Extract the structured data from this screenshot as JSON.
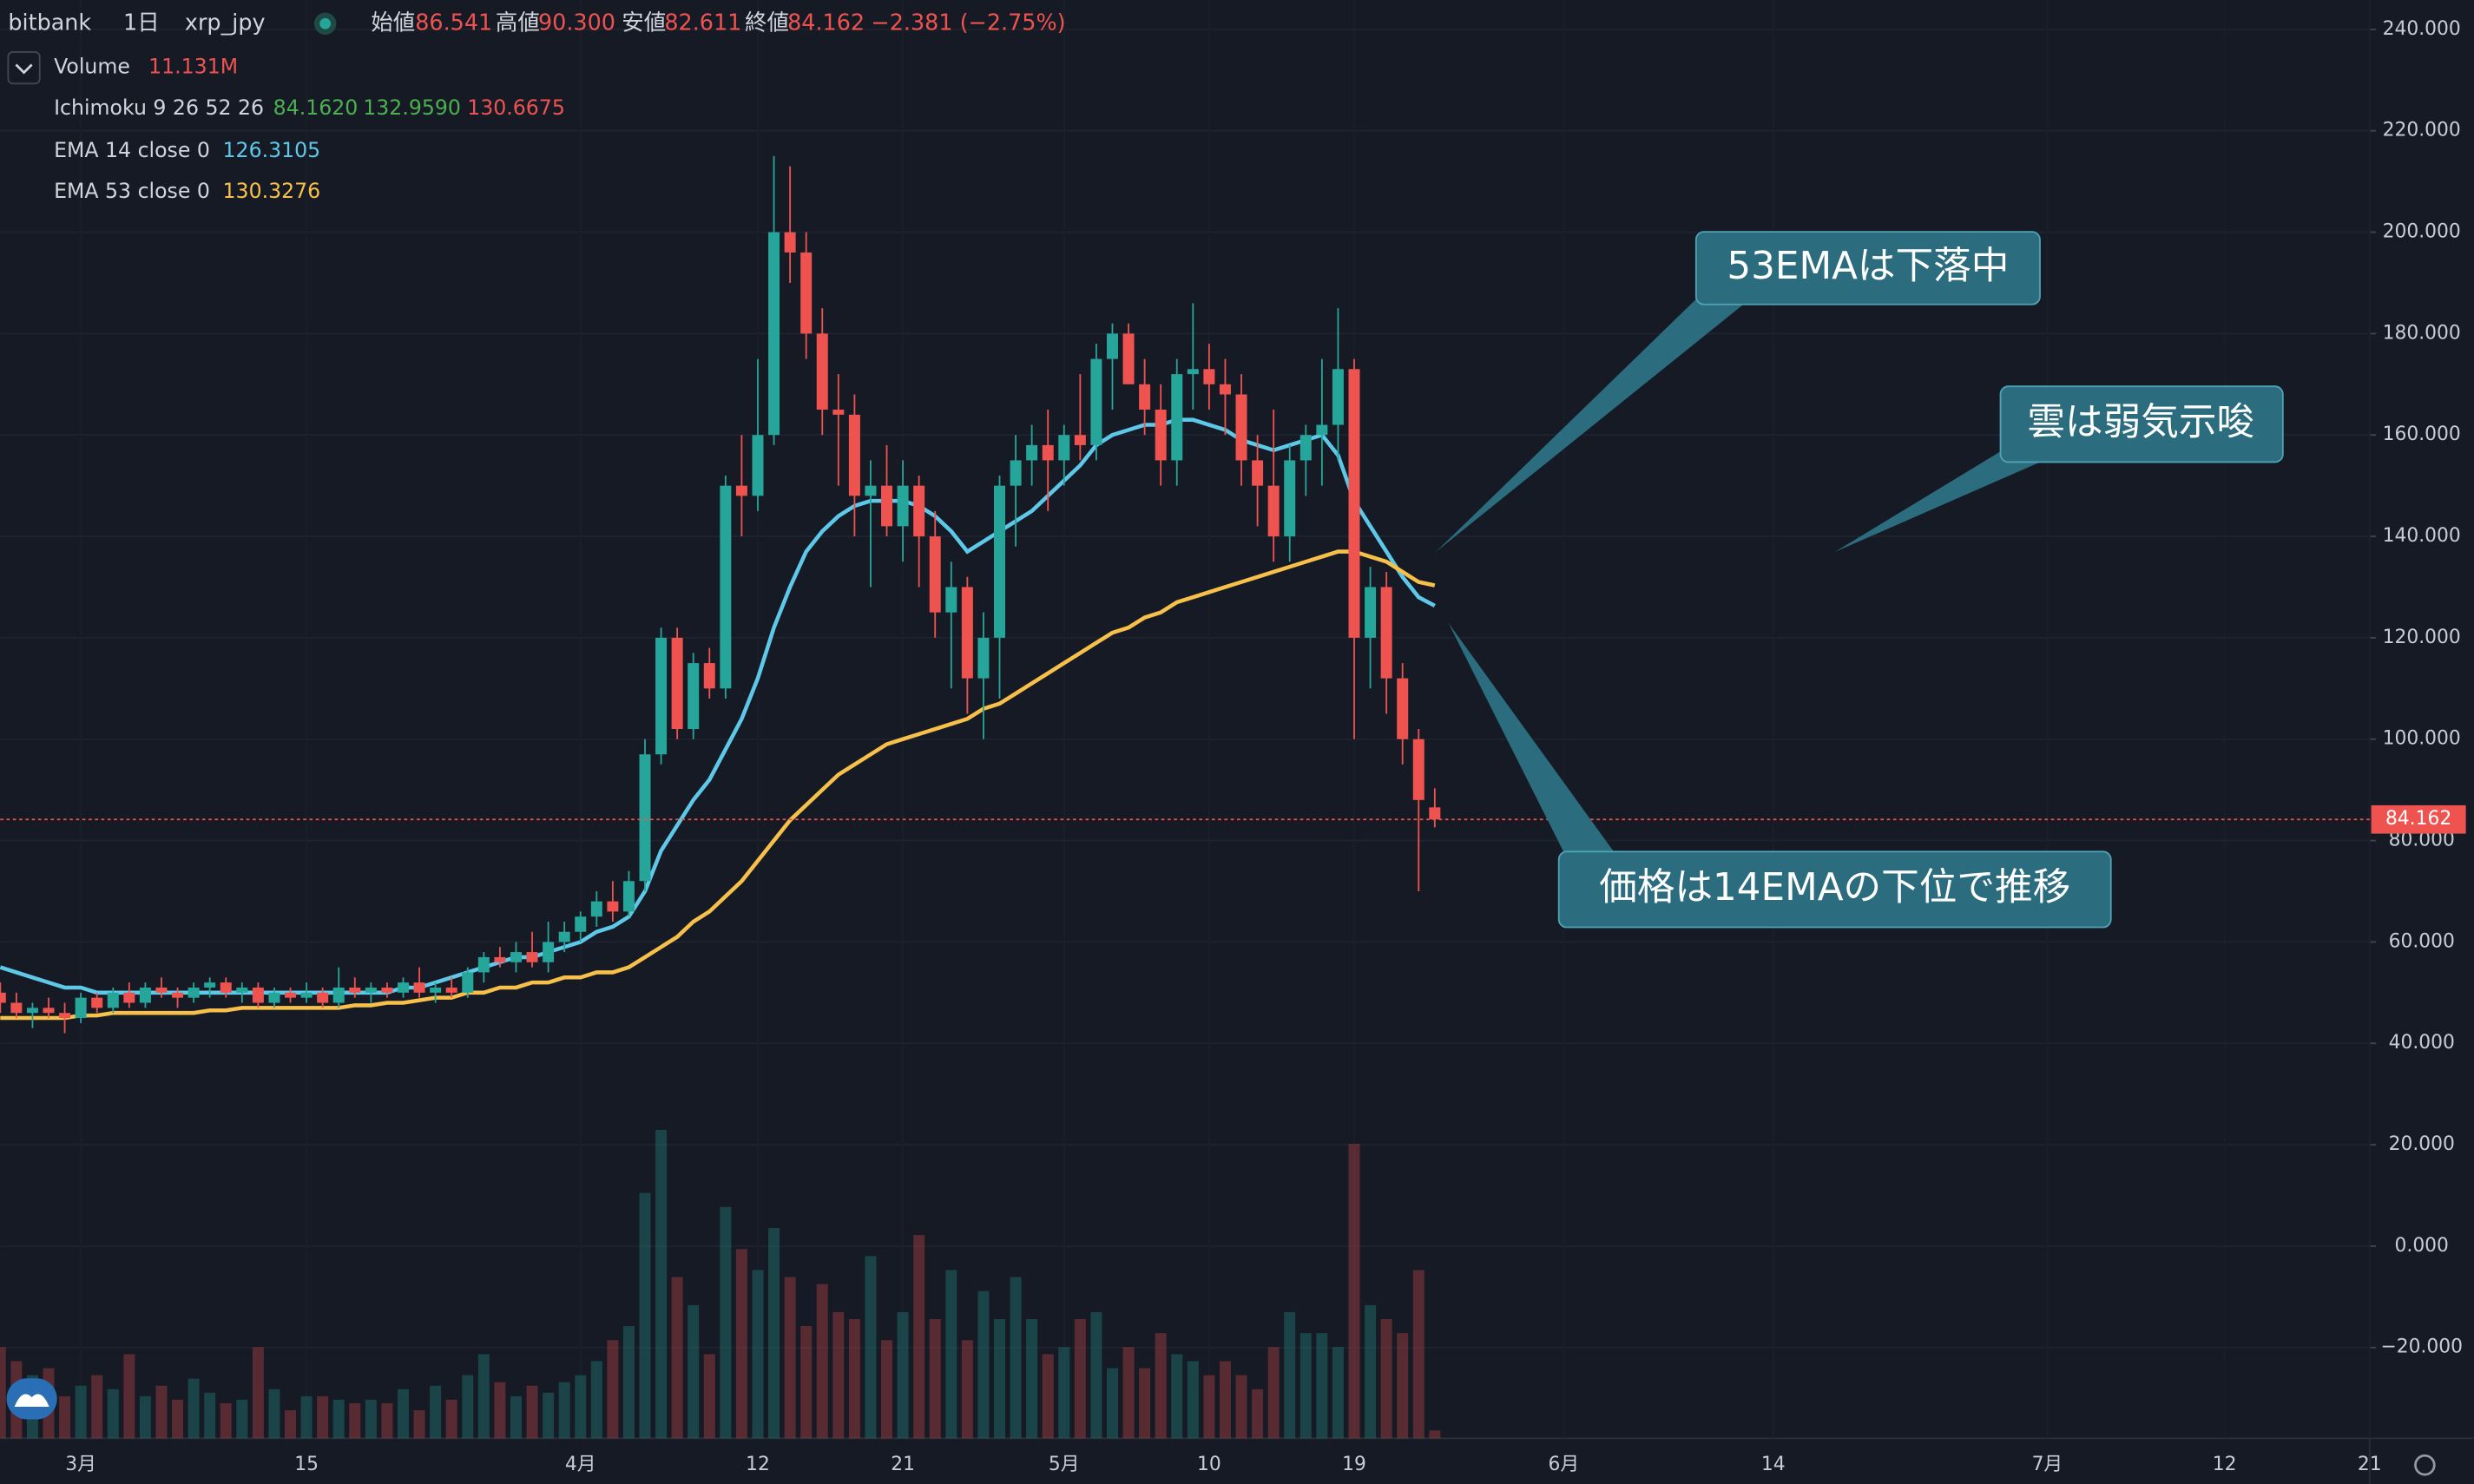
{
  "chart_data": {
    "type": "candlestick",
    "header": {
      "exchange": "bitbank",
      "interval": "1日",
      "symbol": "xrp_jpy",
      "items": [
        {
          "label": "始値",
          "value": "86.541"
        },
        {
          "label": "高値",
          "value": "90.300"
        },
        {
          "label": "安値",
          "value": "82.611"
        },
        {
          "label": "終値",
          "value": "84.162"
        }
      ],
      "change": "−2.381 (−2.75%)"
    },
    "volume_legend": {
      "name": "Volume",
      "value_label": "11.131M"
    },
    "ichimoku_legend": {
      "name": "Ichimoku 9 26 52 26",
      "values": [
        "84.1620",
        "132.9590",
        "130.6675"
      ],
      "colors": [
        "#4caf50",
        "#4caf50",
        "#ef5350"
      ]
    },
    "x": [
      "02-24",
      "02-25",
      "02-26",
      "02-27",
      "02-28",
      "03-01",
      "03-02",
      "03-03",
      "03-04",
      "03-05",
      "03-06",
      "03-07",
      "03-08",
      "03-09",
      "03-10",
      "03-11",
      "03-12",
      "03-13",
      "03-14",
      "03-15",
      "03-16",
      "03-17",
      "03-18",
      "03-19",
      "03-20",
      "03-21",
      "03-22",
      "03-23",
      "03-24",
      "03-25",
      "03-26",
      "03-27",
      "03-28",
      "03-29",
      "03-30",
      "03-31",
      "04-01",
      "04-02",
      "04-03",
      "04-04",
      "04-05",
      "04-06",
      "04-07",
      "04-08",
      "04-09",
      "04-10",
      "04-11",
      "04-12",
      "04-13",
      "04-14",
      "04-15",
      "04-16",
      "04-17",
      "04-18",
      "04-19",
      "04-20",
      "04-21",
      "04-22",
      "04-23",
      "04-24",
      "04-25",
      "04-26",
      "04-27",
      "04-28",
      "04-29",
      "04-30",
      "05-01",
      "05-02",
      "05-03",
      "05-04",
      "05-05",
      "05-06",
      "05-07",
      "05-08",
      "05-09",
      "05-10",
      "05-11",
      "05-12",
      "05-13",
      "05-14",
      "05-15",
      "05-16",
      "05-17",
      "05-18",
      "05-19",
      "05-20",
      "05-21",
      "05-22",
      "05-23",
      "05-24"
    ],
    "open": [
      50,
      48,
      46,
      47,
      46,
      45,
      49,
      47,
      50,
      48,
      51,
      50,
      49,
      51,
      52,
      50,
      51,
      48,
      50,
      49,
      50,
      48,
      51,
      50,
      51,
      50,
      52,
      50,
      51,
      50,
      54,
      57,
      56,
      58,
      56,
      60,
      62,
      65,
      68,
      66,
      72,
      97,
      120,
      102,
      115,
      110,
      150,
      148,
      160,
      200,
      196,
      180,
      165,
      164,
      148,
      150,
      142,
      150,
      140,
      125,
      130,
      112,
      120,
      150,
      155,
      158,
      155,
      160,
      158,
      175,
      180,
      170,
      165,
      155,
      172,
      173,
      170,
      168,
      155,
      150,
      140,
      155,
      160,
      162,
      173,
      120,
      130,
      112,
      100,
      86.541
    ],
    "high": [
      52,
      50,
      48,
      49,
      48,
      50,
      50,
      51,
      52,
      52,
      53,
      51,
      52,
      53,
      53,
      52,
      52,
      51,
      51,
      52,
      51,
      55,
      53,
      52,
      52,
      53,
      55,
      52,
      53,
      55,
      58,
      59,
      60,
      62,
      64,
      64,
      66,
      70,
      72,
      74,
      100,
      122,
      122,
      117,
      118,
      152,
      160,
      175,
      215,
      213,
      200,
      185,
      172,
      168,
      155,
      158,
      155,
      152,
      145,
      135,
      132,
      125,
      152,
      160,
      162,
      165,
      162,
      172,
      178,
      182,
      182,
      175,
      170,
      175,
      186,
      178,
      175,
      172,
      160,
      165,
      158,
      162,
      175,
      185,
      175,
      134,
      133,
      115,
      102,
      90.3
    ],
    "low": [
      46,
      45,
      43,
      45,
      42,
      44,
      46,
      46,
      47,
      47,
      49,
      47,
      48,
      49,
      49,
      48,
      47,
      47,
      48,
      48,
      47,
      47,
      49,
      48,
      49,
      49,
      49,
      48,
      49,
      49,
      52,
      55,
      54,
      55,
      54,
      58,
      60,
      63,
      64,
      65,
      70,
      95,
      100,
      100,
      108,
      108,
      140,
      145,
      158,
      190,
      175,
      160,
      150,
      140,
      130,
      140,
      135,
      130,
      120,
      110,
      105,
      100,
      108,
      138,
      150,
      145,
      150,
      155,
      155,
      165,
      170,
      160,
      150,
      150,
      165,
      165,
      160,
      150,
      142,
      135,
      135,
      148,
      150,
      155,
      100,
      110,
      105,
      95,
      70,
      82.611
    ],
    "close": [
      48,
      46,
      47,
      46,
      45,
      49,
      47,
      50,
      48,
      51,
      50,
      49,
      51,
      52,
      50,
      51,
      48,
      50,
      49,
      50,
      48,
      51,
      50,
      51,
      50,
      52,
      50,
      51,
      50,
      54,
      57,
      56,
      58,
      56,
      60,
      62,
      65,
      68,
      66,
      72,
      97,
      120,
      102,
      115,
      110,
      150,
      148,
      160,
      200,
      196,
      180,
      165,
      164,
      148,
      150,
      142,
      150,
      140,
      125,
      130,
      112,
      120,
      150,
      155,
      158,
      155,
      160,
      158,
      175,
      180,
      170,
      165,
      155,
      172,
      173,
      170,
      168,
      155,
      150,
      140,
      155,
      160,
      162,
      173,
      120,
      130,
      112,
      100,
      88,
      84.162
    ],
    "volume": [
      130,
      110,
      90,
      100,
      60,
      75,
      90,
      70,
      120,
      60,
      75,
      55,
      85,
      65,
      50,
      55,
      130,
      70,
      40,
      60,
      60,
      55,
      50,
      55,
      50,
      70,
      40,
      75,
      55,
      90,
      120,
      80,
      60,
      75,
      65,
      80,
      90,
      110,
      140,
      160,
      350,
      440,
      230,
      190,
      120,
      330,
      270,
      240,
      300,
      230,
      160,
      220,
      180,
      170,
      260,
      140,
      180,
      290,
      170,
      240,
      140,
      210,
      170,
      230,
      170,
      120,
      130,
      170,
      180,
      100,
      130,
      100,
      150,
      120,
      110,
      90,
      110,
      90,
      70,
      130,
      180,
      150,
      150,
      130,
      420,
      190,
      170,
      150,
      240,
      11.131
    ],
    "vlim": [
      0,
      450
    ],
    "up_color": "#26a69a",
    "down_color": "#ef5350",
    "series": [
      {
        "name": "EMA 14 close 0",
        "color": "#5ec8e8",
        "values": [
          55,
          54,
          53,
          52,
          51,
          51,
          50,
          50,
          50,
          50,
          50,
          50,
          50,
          50,
          50,
          50,
          50,
          50,
          50,
          50,
          50,
          50,
          50,
          50,
          50,
          51,
          51,
          52,
          53,
          54,
          55,
          56,
          57,
          57,
          58,
          59,
          60,
          62,
          63,
          65,
          70,
          78,
          83,
          88,
          92,
          98,
          104,
          112,
          122,
          130,
          137,
          141,
          144,
          146,
          147,
          147,
          147,
          146,
          144,
          141,
          137,
          139,
          141,
          143,
          145,
          148,
          151,
          154,
          158,
          160,
          161,
          162,
          162,
          163,
          163,
          162,
          161,
          159,
          158,
          157,
          158,
          159,
          160,
          156,
          147,
          142,
          137,
          132,
          128,
          126.3105
        ]
      },
      {
        "name": "EMA 53 close 0",
        "color": "#f7c04a",
        "values": [
          45,
          45,
          45,
          45,
          45,
          45.5,
          45.5,
          46,
          46,
          46,
          46,
          46,
          46,
          46.5,
          46.5,
          47,
          47,
          47,
          47,
          47,
          47,
          47,
          47.5,
          47.5,
          48,
          48,
          48.5,
          49,
          49,
          50,
          50,
          51,
          51,
          52,
          52,
          53,
          53,
          54,
          54,
          55,
          57,
          59,
          61,
          64,
          66,
          69,
          72,
          76,
          80,
          84,
          87,
          90,
          93,
          95,
          97,
          99,
          100,
          101,
          102,
          103,
          104,
          106,
          107,
          109,
          111,
          113,
          115,
          117,
          119,
          121,
          122,
          124,
          125,
          127,
          128,
          129,
          130,
          131,
          132,
          133,
          134,
          135,
          136,
          137,
          137,
          136,
          135,
          133,
          131,
          130.3276
        ]
      }
    ],
    "xlim": [
      "02-24",
      "07-21"
    ],
    "xticks": [
      {
        "value": "03-01",
        "label": "3月"
      },
      {
        "value": "03-15",
        "label": "15"
      },
      {
        "value": "04-01",
        "label": "4月"
      },
      {
        "value": "04-12",
        "label": "12"
      },
      {
        "value": "04-21",
        "label": "21"
      },
      {
        "value": "05-01",
        "label": "5月"
      },
      {
        "value": "05-10",
        "label": "10"
      },
      {
        "value": "05-19",
        "label": "19"
      },
      {
        "value": "06-01",
        "label": "6月"
      },
      {
        "value": "06-14",
        "label": "14"
      },
      {
        "value": "07-01",
        "label": "7月"
      },
      {
        "value": "07-12",
        "label": "12"
      },
      {
        "value": "07-21",
        "label": "21"
      }
    ],
    "ylim": [
      -37.9,
      245.8
    ],
    "yticks": [
      {
        "value": -20,
        "label": "−20.000"
      },
      {
        "value": 0,
        "label": "0.000"
      },
      {
        "value": 20,
        "label": "20.000"
      },
      {
        "value": 40,
        "label": "40.000"
      },
      {
        "value": 60,
        "label": "60.000"
      },
      {
        "value": 80,
        "label": "80.000"
      },
      {
        "value": 100,
        "label": "100.000"
      },
      {
        "value": 120,
        "label": "120.000"
      },
      {
        "value": 140,
        "label": "140.000"
      },
      {
        "value": 160,
        "label": "160.000"
      },
      {
        "value": 180,
        "label": "180.000"
      },
      {
        "value": 200,
        "label": "200.000"
      },
      {
        "value": 220,
        "label": "220.000"
      },
      {
        "value": 240,
        "label": "240.000"
      }
    ],
    "annotations": [
      "53EMAは下落中",
      "雲は弱気示唆",
      "価格は14EMAの下位で推移"
    ]
  }
}
